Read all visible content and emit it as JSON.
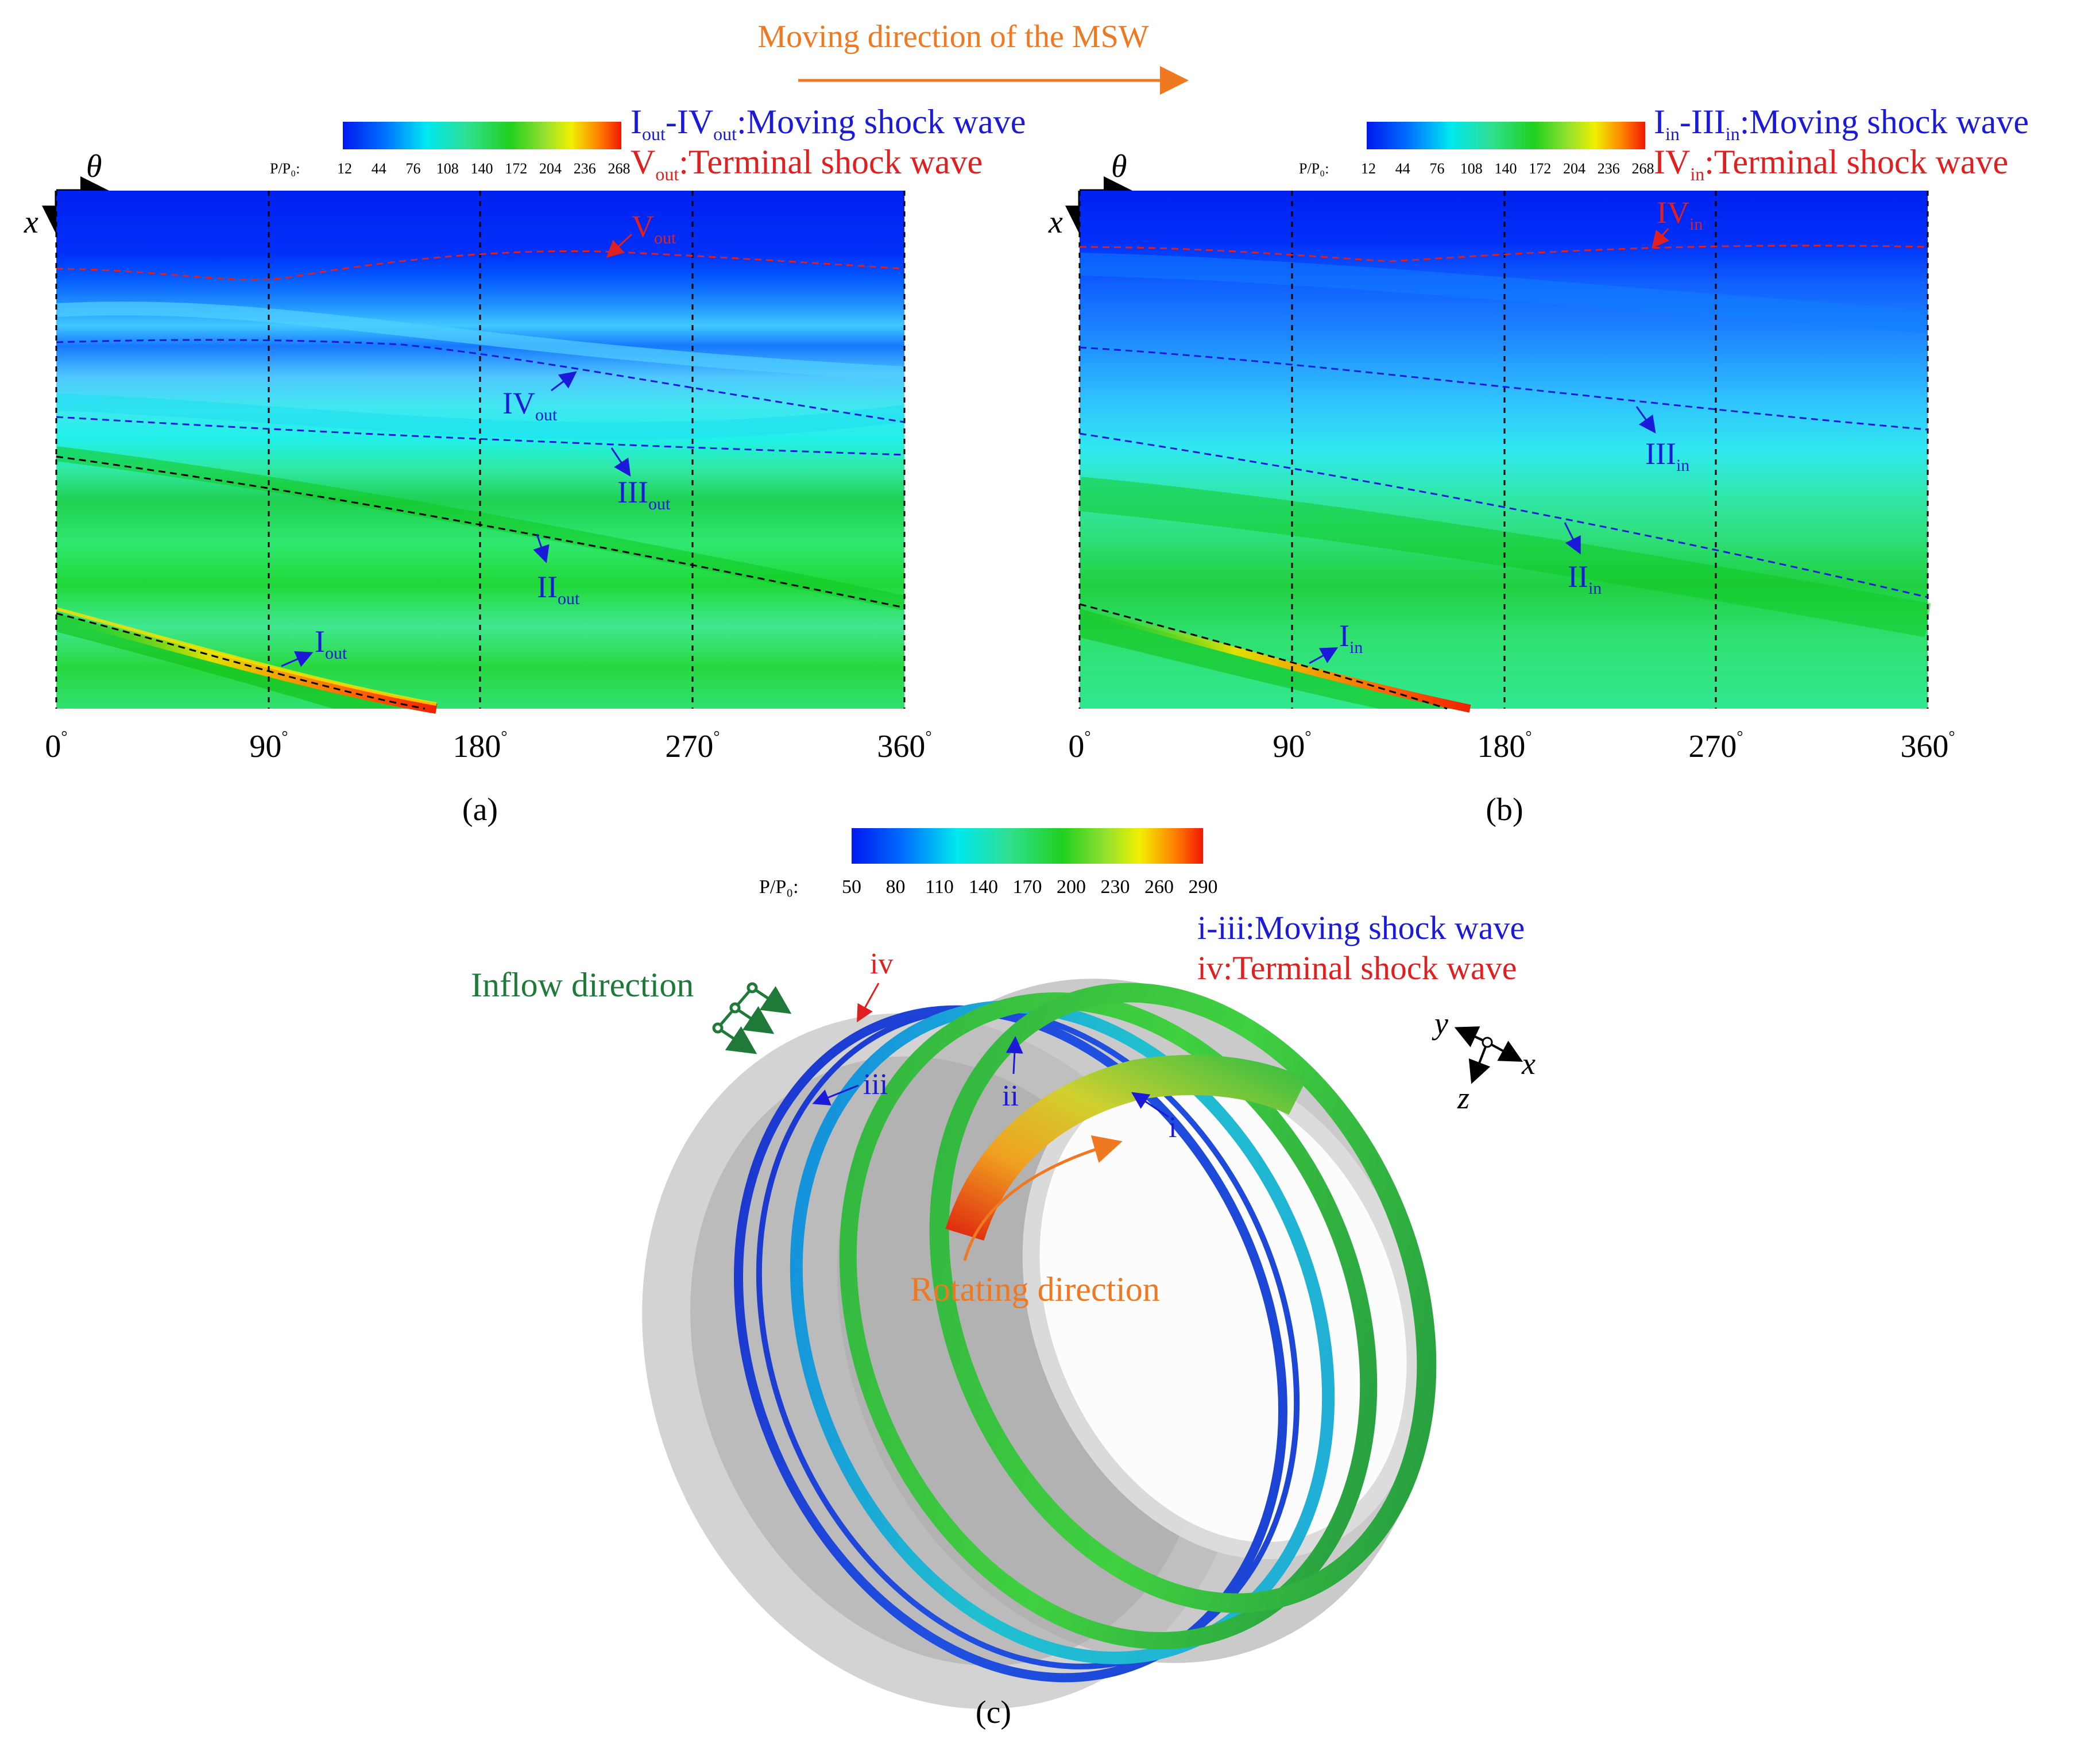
{
  "header": {
    "moving_direction": "Moving direction of the MSW"
  },
  "colors": {
    "blue_label": "#1a1ad8",
    "red_label": "#e02020",
    "orange": "#f07820",
    "green_label": "#1f7a3a"
  },
  "panel_a": {
    "cbar_label": "P/P₀:",
    "cbar_ticks": [
      "12",
      "44",
      "76",
      "108",
      "140",
      "172",
      "204",
      "236",
      "268"
    ],
    "legend_blue": "Iₒᵤₜ-IVₒᵤₜ:Moving shock wave",
    "legend_blue_parts": {
      "a": "I",
      "a_sub": "out",
      "sep": "-IV",
      "b_sub": "out",
      "rest": ":Moving shock wave"
    },
    "legend_red_parts": {
      "a": "V",
      "a_sub": "out",
      "rest": ":Terminal shock wave"
    },
    "theta_label": "θ",
    "x_label": "x",
    "xticks": [
      "0",
      "90",
      "180",
      "270",
      "360"
    ],
    "degree": "°",
    "waves": [
      {
        "name": "V",
        "sub": "out"
      },
      {
        "name": "IV",
        "sub": "out"
      },
      {
        "name": "III",
        "sub": "out"
      },
      {
        "name": "II",
        "sub": "out"
      },
      {
        "name": "I",
        "sub": "out"
      }
    ],
    "caption": "(a)"
  },
  "panel_b": {
    "cbar_label": "P/P₀:",
    "cbar_ticks": [
      "12",
      "44",
      "76",
      "108",
      "140",
      "172",
      "204",
      "236",
      "268"
    ],
    "legend_blue_parts": {
      "a": "I",
      "a_sub": "in",
      "sep": "-III",
      "b_sub": "in",
      "rest": ":Moving shock wave"
    },
    "legend_red_parts": {
      "a": "IV",
      "a_sub": "in",
      "rest": ":Terminal shock wave"
    },
    "theta_label": "θ",
    "x_label": "x",
    "xticks": [
      "0",
      "90",
      "180",
      "270",
      "360"
    ],
    "degree": "°",
    "waves": [
      {
        "name": "IV",
        "sub": "in"
      },
      {
        "name": "III",
        "sub": "in"
      },
      {
        "name": "II",
        "sub": "in"
      },
      {
        "name": "I",
        "sub": "in"
      }
    ],
    "caption": "(b)"
  },
  "panel_c": {
    "cbar_label": "P/P₀:",
    "cbar_ticks": [
      "50",
      "80",
      "110",
      "140",
      "170",
      "200",
      "230",
      "260",
      "290"
    ],
    "legend_blue": "i-iii:Moving shock wave",
    "legend_red": "iv:Terminal shock wave",
    "inflow": "Inflow direction",
    "rotating": "Rotating direction",
    "rings": [
      "iv",
      "iii",
      "ii",
      "i"
    ],
    "axes": {
      "y": "y",
      "x": "x",
      "z": "z"
    },
    "caption": "(c)"
  }
}
